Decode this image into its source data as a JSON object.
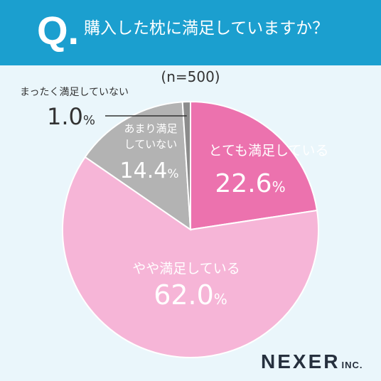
{
  "header": {
    "q_mark": "Q.",
    "question": "購入した枕に満足していますか？"
  },
  "sample": "(n=500)",
  "chart_data": {
    "type": "pie",
    "title": "購入した枕に満足していますか？",
    "slices": [
      {
        "label": "とても満足している",
        "value": 22.6,
        "value_label": "22.6",
        "color": "#ec72ae"
      },
      {
        "label": "やや満足している",
        "value": 62.0,
        "value_label": "62.0",
        "color": "#f6b5d7"
      },
      {
        "label": "あまり満足していない",
        "value": 14.4,
        "value_label": "14.4",
        "color": "#b3b3b3"
      },
      {
        "label": "まったく満足していない",
        "value": 1.0,
        "value_label": "1.0",
        "color": "#8c8c8c"
      }
    ],
    "unit": "%"
  },
  "logo": {
    "main": "NEXER",
    "suffix": "INC."
  }
}
